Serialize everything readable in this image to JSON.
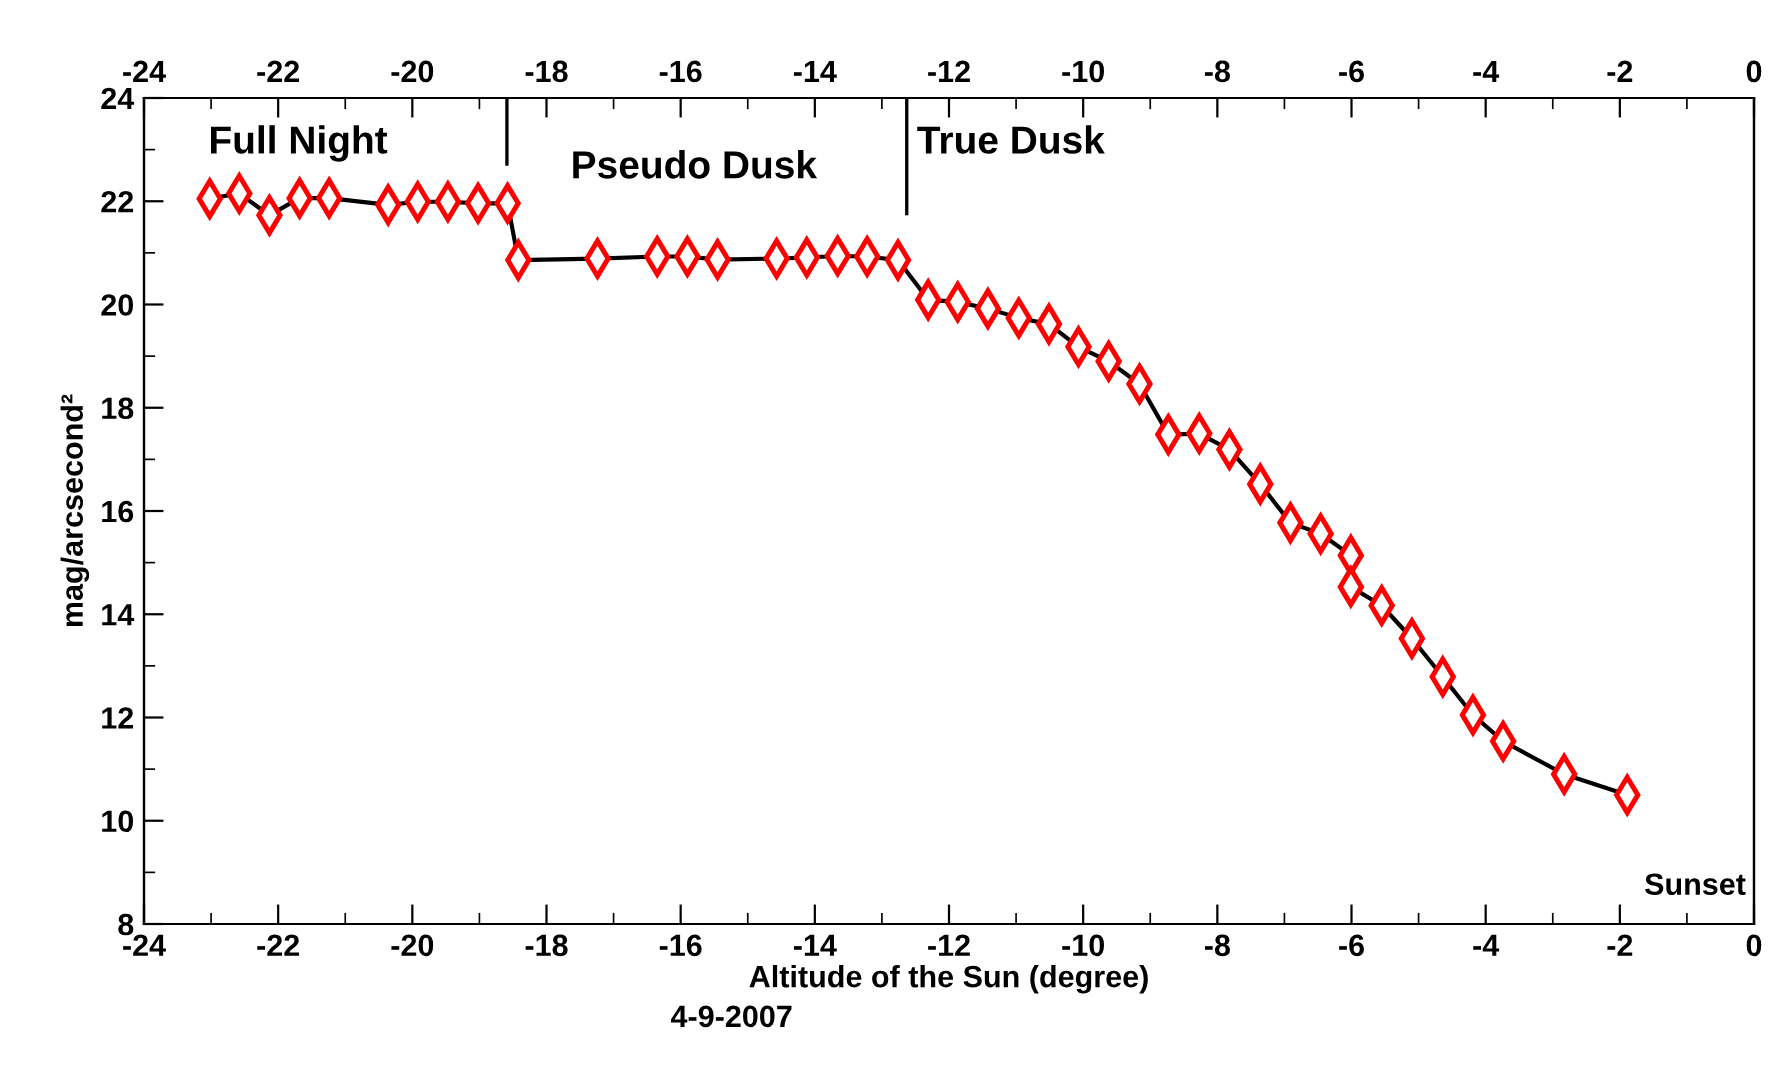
{
  "chart_data": {
    "type": "line",
    "xlabel": "Altitude of the Sun (degree)",
    "ylabel": "mag/arcsecond²",
    "x": [
      -23.02,
      -22.58,
      -22.13,
      -21.68,
      -21.24,
      -20.36,
      -19.92,
      -19.47,
      -19.02,
      -18.58,
      -18.42,
      -17.24,
      -16.35,
      -15.9,
      -15.45,
      -14.57,
      -14.12,
      -13.66,
      -13.22,
      -12.76,
      -12.31,
      -11.87,
      -11.42,
      -10.96,
      -10.51,
      -10.07,
      -9.62,
      -9.16,
      -8.73,
      -8.27,
      -7.82,
      -7.36,
      -6.91,
      -6.46,
      -6.01,
      -6.01,
      -5.55,
      -5.1,
      -4.64,
      -4.19,
      -3.74,
      -2.83,
      -1.89
    ],
    "series": [
      {
        "color": "#ff0000",
        "values": [
          22.05,
          22.15,
          21.73,
          22.06,
          22.06,
          21.93,
          21.99,
          21.99,
          21.96,
          21.96,
          20.86,
          20.89,
          20.93,
          20.93,
          20.87,
          20.89,
          20.91,
          20.94,
          20.93,
          20.86,
          20.09,
          20.05,
          19.92,
          19.74,
          19.62,
          19.18,
          18.9,
          18.46,
          17.48,
          17.5,
          17.19,
          16.52,
          15.77,
          15.56,
          15.14,
          14.53,
          14.17,
          13.53,
          12.79,
          12.05,
          11.54,
          10.9,
          10.5
        ]
      }
    ],
    "marker": "diamond",
    "line_style": "solid",
    "xlim": [
      -24,
      0
    ],
    "xticks": [
      -24,
      -22,
      -20,
      -18,
      -16,
      -14,
      -12,
      -10,
      -8,
      -6,
      -4,
      -2,
      0
    ],
    "x2lim": [
      -24,
      0
    ],
    "x2ticks": [
      -24,
      -22,
      -20,
      -18,
      -16,
      -14,
      -12,
      -10,
      -8,
      -6,
      -4,
      -2,
      0
    ],
    "ylim": [
      8,
      24
    ],
    "yticks": [
      8,
      10,
      12,
      14,
      16,
      18,
      20,
      22,
      24
    ],
    "grid": false,
    "legend": false,
    "ref_lines": [
      {
        "axis": "x",
        "value": -18.59,
        "color": "#000000"
      },
      {
        "axis": "x",
        "value": -12.63,
        "color": "#000000"
      }
    ],
    "annotations": [
      "Full Night",
      "Pseudo Dusk",
      "True Dusk",
      "Sunset",
      "4-9-2007"
    ]
  }
}
